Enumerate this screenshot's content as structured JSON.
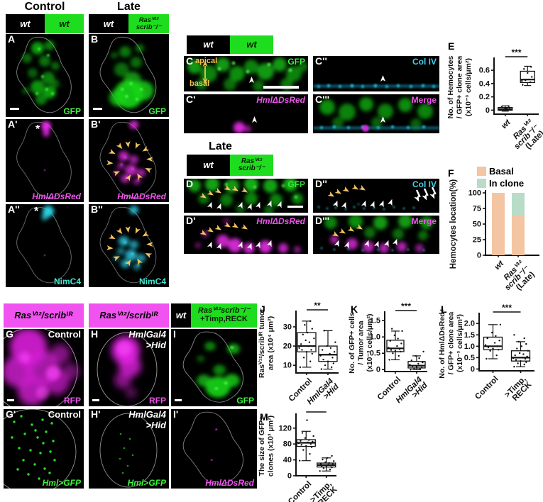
{
  "top": {
    "control_header": "Control",
    "late_header": "Late",
    "geno_a": {
      "left": "wt",
      "right": "wt"
    },
    "geno_b": {
      "left": "wt",
      "right1": "Rasⱽ¹²",
      "right2": "scrib⁻/⁻"
    },
    "letters": {
      "a": "A",
      "b": "B",
      "a1": "A'",
      "b1": "B'",
      "a2": "A''",
      "b2": "B''"
    },
    "gfp": "GFP",
    "hml": "HmlΔDsRed",
    "nimc4": "NimC4",
    "asterisk": "*"
  },
  "cross": {
    "wt_bar": {
      "left": "wt",
      "right": "wt"
    },
    "late": "Late",
    "geno_d": {
      "left": "wt",
      "right1": "Rasⱽ¹²",
      "right2": "scrib⁻/⁻"
    },
    "letters": {
      "c": "C",
      "c1": "C'",
      "c2": "C''",
      "c3": "C'''",
      "d": "D",
      "d1": "D'",
      "d2": "D''",
      "d3": "D'''"
    },
    "apical": "apical",
    "basal": "basal",
    "gfp": "GFP",
    "hml": "HmlΔDsRed",
    "coliv": "Col IV",
    "merge": "Merge"
  },
  "bottom": {
    "geno_ir": "Rasⱽ¹²/scribᴵᴿ",
    "wt": "wt",
    "geno_timp1": "Rasⱽ¹²scrib⁻/⁻",
    "geno_timp2": "+Timp,RECK",
    "letters": {
      "g": "G",
      "h": "H",
      "i": "I",
      "g1": "G'",
      "h1": "H'",
      "i1": "I'"
    },
    "control": "Control",
    "hmlgal4": "HmlGal4",
    "hid": ">Hid",
    "rfp": "RFP",
    "gfp": "GFP",
    "hml_gfp": "Hml>GFP",
    "hml_dsred": "HmlΔDsRed"
  },
  "chart_data": [
    {
      "letter": "E",
      "type": "box",
      "ylabel_lines": [
        "No. of Hemocytes",
        "/ GFP+ clone area",
        "(x10⁻³ cells/μm²)"
      ],
      "ylim": [
        -0.06,
        0.75
      ],
      "yticks": [
        {
          "v": 0,
          "t": "0"
        },
        {
          "v": 0.2,
          "t": "0.2"
        },
        {
          "v": 0.4,
          "t": "0.4"
        },
        {
          "v": 0.6,
          "t": "0.6"
        }
      ],
      "sig": "***",
      "groups": [
        {
          "lines": [
            {
              "t": "wt",
              "i": true
            }
          ],
          "lo": -0.015,
          "q1": 0.0,
          "med": 0.015,
          "q3": 0.04,
          "hi": 0.065,
          "points": [
            0,
            0.005,
            0.012,
            0.02,
            0.03,
            0.048,
            0.06,
            0.002,
            0.025,
            0.01
          ]
        },
        {
          "lines": [
            {
              "t": "Rasⱽ¹²",
              "i": true
            },
            {
              "t": "scrib⁻/⁻",
              "i": true
            },
            {
              "t": "(Late)",
              "i": false
            }
          ],
          "lo": 0.37,
          "q1": 0.415,
          "med": 0.46,
          "q3": 0.585,
          "hi": 0.66,
          "points": [
            0.38,
            0.42,
            0.45,
            0.5,
            0.56,
            0.62,
            0.65,
            0.44
          ]
        }
      ]
    },
    {
      "letter": "F",
      "type": "stacked_bar",
      "ylabel": "Hemocytes location(%)",
      "yticks": [
        {
          "v": 0,
          "t": "0"
        },
        {
          "v": 25,
          "t": "25"
        },
        {
          "v": 50,
          "t": "50"
        },
        {
          "v": 75,
          "t": "75"
        },
        {
          "v": 100,
          "t": "100"
        }
      ],
      "legend": [
        {
          "label": "Basal",
          "color": "#f4c5a3"
        },
        {
          "label": "In clone",
          "color": "#b9dcc8"
        }
      ],
      "groups": [
        {
          "lines": [
            {
              "t": "wt",
              "i": true
            }
          ],
          "basal": 100,
          "in_clone": 0
        },
        {
          "lines": [
            {
              "t": "Rasⱽ¹²",
              "i": true
            },
            {
              "t": "scrib⁻/⁻",
              "i": true
            },
            {
              "t": "(Late)",
              "i": false
            }
          ],
          "basal": 63,
          "in_clone": 37
        }
      ]
    },
    {
      "letter": "J",
      "type": "box",
      "ylabel_lines": [
        "Rasⱽ¹²/scribᴵᴿ tumor",
        "area (x10⁴ μm²)"
      ],
      "ylim": [
        6,
        37
      ],
      "yticks": [
        {
          "v": 10,
          "t": "10"
        },
        {
          "v": 20,
          "t": "20"
        },
        {
          "v": 30,
          "t": "30"
        }
      ],
      "sig": "**",
      "groups": [
        {
          "lines": [
            {
              "t": "Control",
              "i": false
            }
          ],
          "lo": 9,
          "q1": 17,
          "med": 20,
          "q3": 27,
          "hi": 33,
          "points": [
            9,
            12,
            14,
            16,
            17,
            18,
            18,
            19,
            20,
            20,
            21,
            22,
            23,
            24,
            26,
            27,
            29,
            31,
            33
          ]
        },
        {
          "lines": [
            {
              "t": "HmlGal4",
              "i": true
            },
            {
              "t": ">Hid",
              "i": true
            }
          ],
          "lo": 8,
          "q1": 12,
          "med": 15.5,
          "q3": 20,
          "hi": 28,
          "points": [
            8,
            9,
            10,
            11,
            12,
            13,
            14,
            15,
            16,
            17,
            18,
            19,
            20,
            22,
            28
          ]
        }
      ]
    },
    {
      "letter": "K",
      "type": "box",
      "ylabel_lines": [
        "No. of GFP+ cells",
        "/ Tumor area",
        "(x10⁻³ cells/μm²)"
      ],
      "ylim": [
        -0.06,
        1.7
      ],
      "yticks": [
        {
          "v": 0,
          "t": "0"
        },
        {
          "v": 0.5,
          "t": "0.5"
        },
        {
          "v": 1.0,
          "t": "1.0"
        },
        {
          "v": 1.5,
          "t": "1.5"
        }
      ],
      "sig": "***",
      "groups": [
        {
          "lines": [
            {
              "t": "Control",
              "i": false
            }
          ],
          "lo": 0.3,
          "q1": 0.55,
          "med": 0.65,
          "q3": 0.9,
          "hi": 1.18,
          "points": [
            0.3,
            0.42,
            0.5,
            0.55,
            0.58,
            0.6,
            0.63,
            0.67,
            0.72,
            0.8,
            0.88,
            0.95,
            1.05,
            1.18,
            1.25
          ]
        },
        {
          "lines": [
            {
              "t": "HmlGal4",
              "i": true
            },
            {
              "t": ">Hid",
              "i": true
            }
          ],
          "lo": 0.0,
          "q1": 0.05,
          "med": 0.12,
          "q3": 0.25,
          "hi": 0.42,
          "points": [
            0,
            0.02,
            0.04,
            0.06,
            0.08,
            0.1,
            0.12,
            0.15,
            0.18,
            0.22,
            0.28,
            0.35,
            0.42,
            0.55
          ]
        }
      ]
    },
    {
      "letter": "L",
      "type": "box",
      "ylabel_lines": [
        "No. of HmlΔDsRed+",
        "/ GFP+ clone area",
        "(x10⁻³ cells/μm²)"
      ],
      "ylim": [
        -0.08,
        2.35
      ],
      "yticks": [
        {
          "v": 0,
          "t": "0"
        },
        {
          "v": 0.5,
          "t": "0.5"
        },
        {
          "v": 1.0,
          "t": "1.0"
        },
        {
          "v": 1.5,
          "t": "1.5"
        },
        {
          "v": 2.0,
          "t": "2.0"
        }
      ],
      "sig": "***",
      "groups": [
        {
          "lines": [
            {
              "t": "Control",
              "i": false
            }
          ],
          "lo": 0.45,
          "q1": 0.85,
          "med": 1.0,
          "q3": 1.4,
          "hi": 1.95,
          "points": [
            0.45,
            0.6,
            0.8,
            0.85,
            0.9,
            0.95,
            1.0,
            1.05,
            1.15,
            1.25,
            1.35,
            1.45,
            1.6,
            1.95
          ]
        },
        {
          "lines": [
            {
              "t": ">Timp,",
              "i": false
            },
            {
              "t": "RECK",
              "i": false
            }
          ],
          "lo": 0.1,
          "q1": 0.35,
          "med": 0.5,
          "q3": 0.8,
          "hi": 1.2,
          "points": [
            0.1,
            0.2,
            0.25,
            0.3,
            0.35,
            0.4,
            0.45,
            0.48,
            0.5,
            0.55,
            0.6,
            0.65,
            0.7,
            0.8,
            0.9,
            1.0,
            1.1,
            1.2,
            1.35,
            1.5
          ]
        }
      ]
    },
    {
      "letter": "M",
      "type": "box",
      "ylabel_lines": [
        "The size of GFP+",
        "clones (x10³ μm²)"
      ],
      "ylim": [
        0,
        150
      ],
      "yticks": [
        {
          "v": 0,
          "t": "0"
        },
        {
          "v": 40,
          "t": "40"
        },
        {
          "v": 80,
          "t": "80"
        },
        {
          "v": 120,
          "t": "120"
        }
      ],
      "sig": "***",
      "groups": [
        {
          "lines": [
            {
              "t": "Control",
              "i": false
            }
          ],
          "lo": 38,
          "q1": 74,
          "med": 83,
          "q3": 91,
          "hi": 112,
          "points": [
            38,
            55,
            65,
            72,
            75,
            78,
            80,
            82,
            84,
            86,
            88,
            90,
            95,
            100,
            108,
            140
          ]
        },
        {
          "lines": [
            {
              "t": ">Timp,",
              "i": false
            },
            {
              "t": "RECK",
              "i": false
            }
          ],
          "lo": 12,
          "q1": 22,
          "med": 27,
          "q3": 32,
          "hi": 45,
          "points": [
            12,
            16,
            19,
            21,
            23,
            25,
            26,
            27,
            28,
            29,
            30,
            32,
            34,
            37,
            41,
            45,
            50
          ]
        }
      ]
    }
  ]
}
